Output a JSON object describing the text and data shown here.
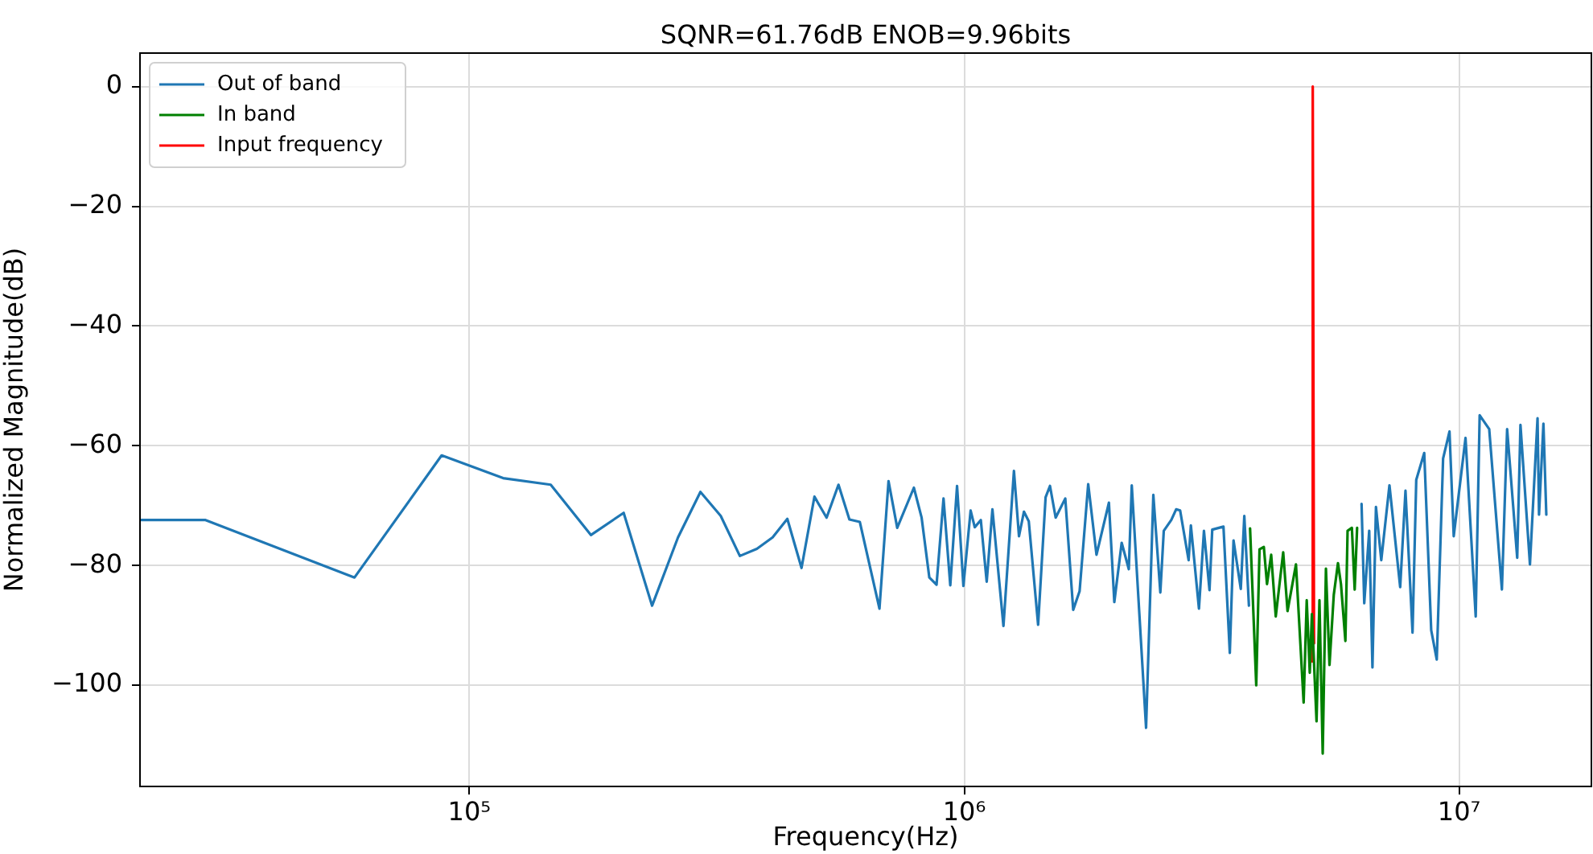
{
  "chart_data": {
    "type": "line",
    "title": "SQNR=61.76dB ENOB=9.96bits",
    "xlabel": "Frequency(Hz)",
    "ylabel": "Normalized Magnitude(dB)",
    "log": "x",
    "grid": true,
    "legend": "top left",
    "xlim": [
      21600,
      18500000
    ],
    "ylim": [
      -116.9,
      5.6
    ],
    "xticks": [
      {
        "value": 100000,
        "label": "10⁵"
      },
      {
        "value": 1000000,
        "label": "10⁶"
      },
      {
        "value": 10000000,
        "label": "10⁷"
      }
    ],
    "yticks": [
      {
        "value": -100,
        "label": "−100"
      },
      {
        "value": -80,
        "label": "−80"
      },
      {
        "value": -60,
        "label": "−60"
      },
      {
        "value": -40,
        "label": "−40"
      },
      {
        "value": -20,
        "label": "−20"
      },
      {
        "value": 0,
        "label": "0"
      }
    ],
    "series": [
      {
        "name": "Out of band",
        "color": "#1f77b4",
        "x": [
          21600,
          29300,
          58600,
          87900,
          117000,
          146000,
          176000,
          205000,
          234000,
          264000,
          293000,
          322000,
          352000,
          381000,
          410000,
          439000,
          469000,
          498000,
          527000,
          557000,
          586000,
          615000,
          674000,
          703000,
          732000,
          791000,
          820000,
          850000,
          879000,
          908000,
          937000,
          967000,
          996000,
          1030000,
          1050000,
          1080000,
          1110000,
          1140000,
          1200000,
          1260000,
          1290000,
          1320000,
          1350000,
          1410000,
          1460000,
          1490000,
          1530000,
          1600000,
          1660000,
          1710000,
          1780000,
          1850000,
          1960000,
          2010000,
          2080000,
          2150000,
          2180000,
          2330000,
          2410000,
          2490000,
          2530000,
          2620000,
          2680000,
          2730000,
          2840000,
          2870000,
          2980000,
          3050000,
          3130000,
          3170000,
          3340000,
          3440000,
          3500000,
          3620000,
          3680000,
          3760000,
          5000000,
          6350000,
          6430000,
          6580000,
          6680000,
          6790000,
          6960000,
          7230000,
          7600000,
          7790000,
          8050000,
          8190000,
          8500000,
          8780000,
          9010000,
          9280000,
          9560000,
          9750000,
          10300000,
          10800000,
          11000000,
          11500000,
          12200000,
          12500000,
          13100000,
          13300000,
          13900000,
          14400000,
          14500000,
          14800000,
          15000000
        ],
        "values": [
          -72.4,
          -72.4,
          -82,
          -61.6,
          -65.4,
          -66.5,
          -74.9,
          -71.2,
          -86.7,
          -75.3,
          -67.7,
          -71.7,
          -78.4,
          -77.2,
          -75.3,
          -72.2,
          -80.4,
          -68.5,
          -72,
          -66.5,
          -72.3,
          -72.7,
          -87.2,
          -65.9,
          -73.7,
          -67,
          -72,
          -82,
          -83.2,
          -68.8,
          -83.3,
          -66.7,
          -83.4,
          -70.8,
          -73.6,
          -72.4,
          -82.7,
          -70.6,
          -90.1,
          -64.2,
          -75.1,
          -71,
          -72.6,
          -89.9,
          -68.6,
          -66.7,
          -72,
          -68.8,
          -87.4,
          -84.3,
          -66.4,
          -78.2,
          -69.5,
          -86.1,
          -76.2,
          -80.6,
          -66.6,
          -107.1,
          -68.2,
          -84.5,
          -74.2,
          -72.4,
          -70.6,
          -70.8,
          -79.1,
          -73.3,
          -87.2,
          -74.2,
          -84.1,
          -74,
          -73.5,
          -94.6,
          -75.8,
          -83.9,
          -71.7,
          -86.7,
          null,
          -69.7,
          -86.3,
          -74.2,
          -97,
          -70.2,
          -79.1,
          -66.6,
          -83.6,
          -67.5,
          -91.2,
          -65.7,
          -61.2,
          -90.8,
          -95.7,
          -62.1,
          -57.6,
          -75.1,
          -58.7,
          -88.5,
          -54.9,
          -57.2,
          -84,
          -57.2,
          -78.7,
          -56.5,
          -79.8,
          -55.4,
          -71.5,
          -56.3,
          -71.5
        ]
      },
      {
        "name": "In band",
        "color": "#008000",
        "x": [
          3780000,
          3890000,
          3950000,
          4030000,
          4090000,
          4170000,
          4260000,
          4410000,
          4500000,
          4680000,
          4850000,
          4920000,
          4990000,
          5040000,
          5150000,
          5220000,
          5300000,
          5380000,
          5470000,
          5580000,
          5690000,
          5770000,
          5890000,
          5950000,
          6070000,
          6150000,
          6220000
        ],
        "values": [
          -73.8,
          -100,
          -77.3,
          -76.9,
          -83.1,
          -78.2,
          -88.5,
          -77.8,
          -87.6,
          -79.8,
          -102.9,
          -85.8,
          -97.9,
          -88.1,
          -106,
          -85.8,
          -111.4,
          -80.5,
          -96.6,
          -84.9,
          -79.6,
          -83.1,
          -92.6,
          -74.2,
          -73.7,
          -84,
          -73.7
        ]
      },
      {
        "name": "Input frequency",
        "color": "#ff0000",
        "x": [
          5030000,
          5060000,
          5090000
        ],
        "values": [
          -96,
          0,
          -93
        ]
      }
    ]
  }
}
